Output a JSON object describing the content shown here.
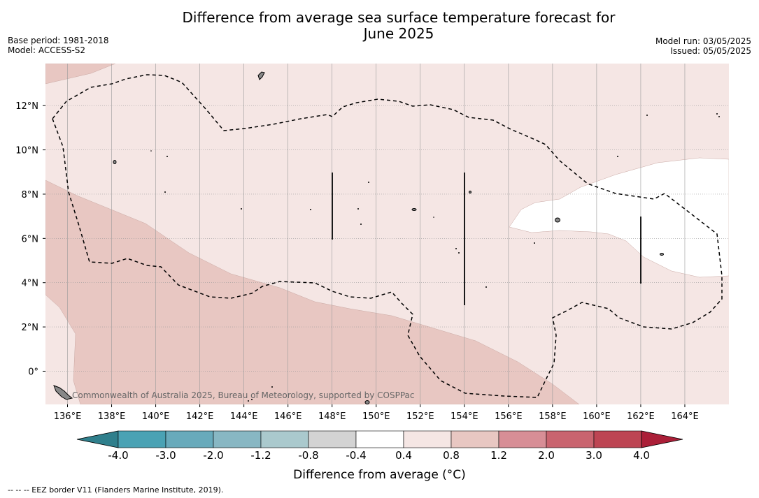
{
  "title_line1": "Difference from average sea surface temperature forecast for",
  "title_line2": "June 2025",
  "meta_left": {
    "base_period": "Base period: 1981-2018",
    "model": "Model: ACCESS-S2"
  },
  "meta_right": {
    "model_run": "Model run: 03/05/2025",
    "issued": "Issued: 05/05/2025"
  },
  "map": {
    "lon_range": [
      135,
      166
    ],
    "lat_range": [
      -1.5,
      13.9
    ],
    "lon_ticks": [
      136,
      138,
      140,
      142,
      144,
      146,
      148,
      150,
      152,
      154,
      156,
      158,
      160,
      162,
      164
    ],
    "lon_tick_labels": [
      "136°E",
      "138°E",
      "140°E",
      "142°E",
      "144°E",
      "146°E",
      "148°E",
      "150°E",
      "152°E",
      "154°E",
      "156°E",
      "158°E",
      "160°E",
      "162°E",
      "164°E"
    ],
    "lat_ticks": [
      0,
      2,
      4,
      6,
      8,
      10,
      12
    ],
    "lat_tick_labels": [
      "0°",
      "2°N",
      "4°N",
      "6°N",
      "8°N",
      "10°N",
      "12°N"
    ],
    "grid": true,
    "copyright": "Commonwealth of Australia 2025, Bureau of Meteorology, supported by COSPPac"
  },
  "colorbar": {
    "title": "Difference from average (°C)",
    "labels": [
      "-4.0",
      "-3.0",
      "-2.0",
      "-1.2",
      "-0.8",
      "-0.4",
      "0.4",
      "0.8",
      "1.2",
      "2.0",
      "3.0",
      "4.0"
    ],
    "colors": [
      "#2f7f8c",
      "#4aa2b4",
      "#68aabb",
      "#88b7c3",
      "#aac9cd",
      "#d3d3d3",
      "#ffffff",
      "#f5e6e4",
      "#e8c7c2",
      "#d78e96",
      "#c9646f",
      "#bd4553",
      "#ab1f38"
    ]
  },
  "footnote": "--  --  -- EEZ border V11 (Flanders Marine Institute, 2019)."
}
